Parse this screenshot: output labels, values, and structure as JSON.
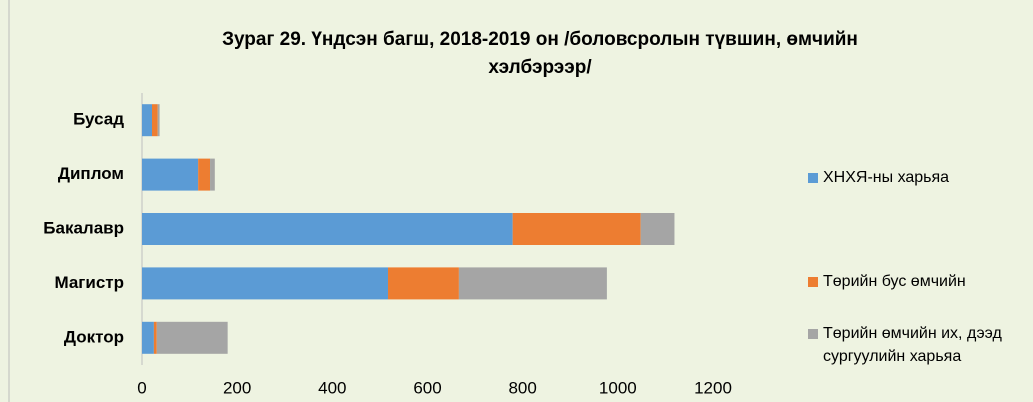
{
  "chart_data": {
    "type": "stacked_bar_horizontal",
    "title": "Зураг 29. Үндсэн багш, 2018-2019 он /боловсролын түвшин, өмчийн хэлбэрээр/",
    "categories": [
      "Бусад",
      "Диплом",
      "Бакалавр",
      "Магистр",
      "Доктор"
    ],
    "series": [
      {
        "name": "ХНХЯ-ны харьяа",
        "color": "#5b9bd5",
        "values": [
          21,
          118,
          779,
          517,
          25
        ]
      },
      {
        "name": "Төрийн бус өмчийн",
        "color": "#ed7d31",
        "values": [
          12,
          25,
          269,
          149,
          6
        ]
      },
      {
        "name": "Төрийн өмчийн их, дээд сургуулийн харьяа",
        "color": "#a5a5a5",
        "values": [
          4,
          10,
          71,
          311,
          149
        ]
      }
    ],
    "xlim": [
      0,
      1200
    ],
    "xticks": [
      0,
      200,
      400,
      600,
      800,
      1000,
      1200
    ],
    "legend": "right"
  }
}
